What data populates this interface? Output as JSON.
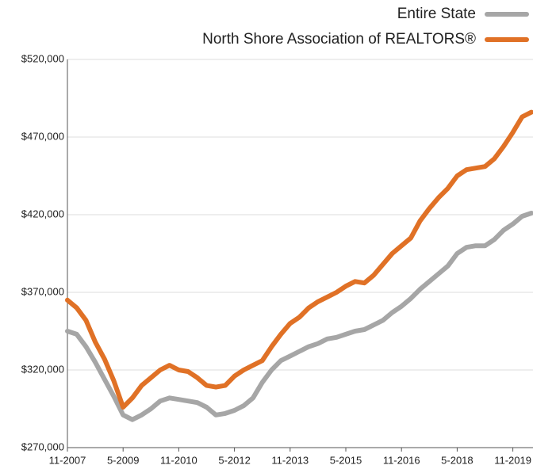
{
  "chart_data": {
    "type": "line",
    "categories": [
      "11-2007",
      null,
      null,
      null,
      null,
      null,
      "5-2009",
      null,
      null,
      null,
      null,
      null,
      "11-2010",
      null,
      null,
      null,
      null,
      null,
      "5-2012",
      null,
      null,
      null,
      null,
      null,
      "11-2013",
      null,
      null,
      null,
      null,
      null,
      "5-2015",
      null,
      null,
      null,
      null,
      null,
      "11-2016",
      null,
      null,
      null,
      null,
      null,
      "5-2018",
      null,
      null,
      null,
      null,
      null,
      "11-2019",
      null,
      null
    ],
    "series": [
      {
        "name": "Entire State",
        "color": "#a6a6a6",
        "values": [
          345000,
          343000,
          335000,
          325000,
          314000,
          303000,
          291000,
          288000,
          291000,
          295000,
          300000,
          302000,
          301000,
          300000,
          299000,
          296000,
          291000,
          292000,
          294000,
          297000,
          302000,
          312000,
          320000,
          326000,
          329000,
          332000,
          335000,
          337000,
          340000,
          341000,
          343000,
          345000,
          346000,
          349000,
          352000,
          357000,
          361000,
          366000,
          372000,
          377000,
          382000,
          387000,
          395000,
          399000,
          400000,
          400000,
          404000,
          410000,
          414000,
          419000,
          421000
        ]
      },
      {
        "name": "North Shore Association of REALTORS®",
        "color": "#e07126",
        "values": [
          365000,
          360000,
          352000,
          338000,
          327000,
          313000,
          296000,
          302000,
          310000,
          315000,
          320000,
          323000,
          320000,
          319000,
          315000,
          310000,
          309000,
          310000,
          316000,
          320000,
          323000,
          326000,
          335000,
          343000,
          350000,
          354000,
          360000,
          364000,
          367000,
          370000,
          374000,
          377000,
          376000,
          381000,
          388000,
          395000,
          400000,
          405000,
          416000,
          424000,
          431000,
          437000,
          445000,
          449000,
          450000,
          451000,
          456000,
          464000,
          473000,
          483000,
          486000
        ]
      }
    ],
    "ylim": [
      270000,
      520000
    ],
    "yticks": [
      {
        "value": 270000,
        "label": "$270,000"
      },
      {
        "value": 320000,
        "label": "$320,000"
      },
      {
        "value": 370000,
        "label": "$370,000"
      },
      {
        "value": 420000,
        "label": "$420,000"
      },
      {
        "value": 470000,
        "label": "$470,000"
      },
      {
        "value": 520000,
        "label": "$520,000"
      }
    ],
    "grid": true,
    "legend": "top-right"
  }
}
